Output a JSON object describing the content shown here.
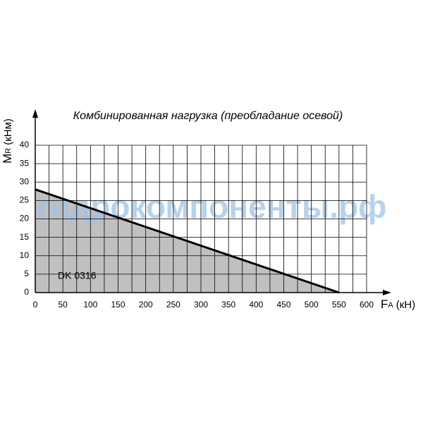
{
  "chart_data": {
    "type": "area",
    "title": "Комбинированная нагрузка (преобладание осевой)",
    "y_label": {
      "main": "M",
      "sub": "R",
      "unit": "(кНм)"
    },
    "x_label": {
      "main": "F",
      "sub": "A",
      "unit": "(кН)"
    },
    "annotation": "DK 0316",
    "watermark": "гидрокомпоненты.рф",
    "x": [
      0,
      550
    ],
    "values": [
      28,
      0
    ],
    "color": "#c0c0c0",
    "line_color": "#000000",
    "xlim": [
      0,
      600
    ],
    "ylim": [
      0,
      40
    ],
    "xticks": [
      0,
      50,
      100,
      150,
      200,
      250,
      300,
      350,
      400,
      450,
      500,
      550,
      600
    ],
    "xminorticks": [
      25,
      75,
      125,
      175,
      225,
      275,
      325,
      375,
      425,
      475,
      525,
      575
    ],
    "yticks": [
      0,
      5,
      10,
      15,
      20,
      25,
      30,
      35,
      40
    ],
    "grid": true
  }
}
